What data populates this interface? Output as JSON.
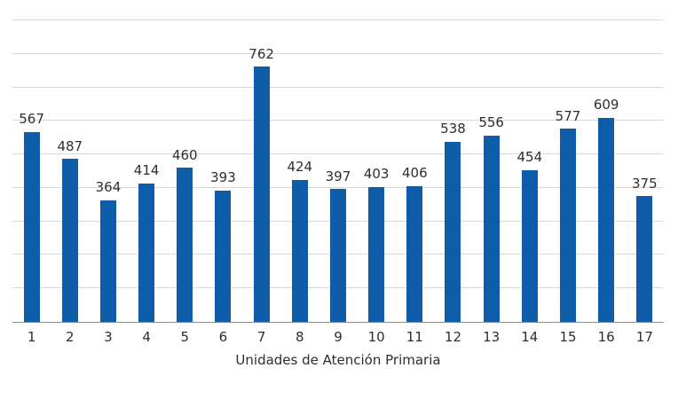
{
  "chart_data": {
    "type": "bar",
    "categories": [
      "1",
      "2",
      "3",
      "4",
      "5",
      "6",
      "7",
      "8",
      "9",
      "10",
      "11",
      "12",
      "13",
      "14",
      "15",
      "16",
      "17"
    ],
    "values": [
      567,
      487,
      364,
      414,
      460,
      393,
      762,
      424,
      397,
      403,
      406,
      538,
      556,
      454,
      577,
      609,
      375
    ],
    "title": "",
    "xlabel": "Unidades de Atención Primaria",
    "ylabel": "",
    "ylim": [
      0,
      900
    ],
    "gridline_step": 100,
    "grid": "horizontal",
    "legend": "none",
    "data_labels": "above-bars",
    "colors": {
      "bar": "#0f5ca8",
      "text": "#2e2e2e",
      "gridline": "#d9d9d9",
      "axis_line": "#8f8f8f",
      "background": "#ffffff"
    }
  }
}
